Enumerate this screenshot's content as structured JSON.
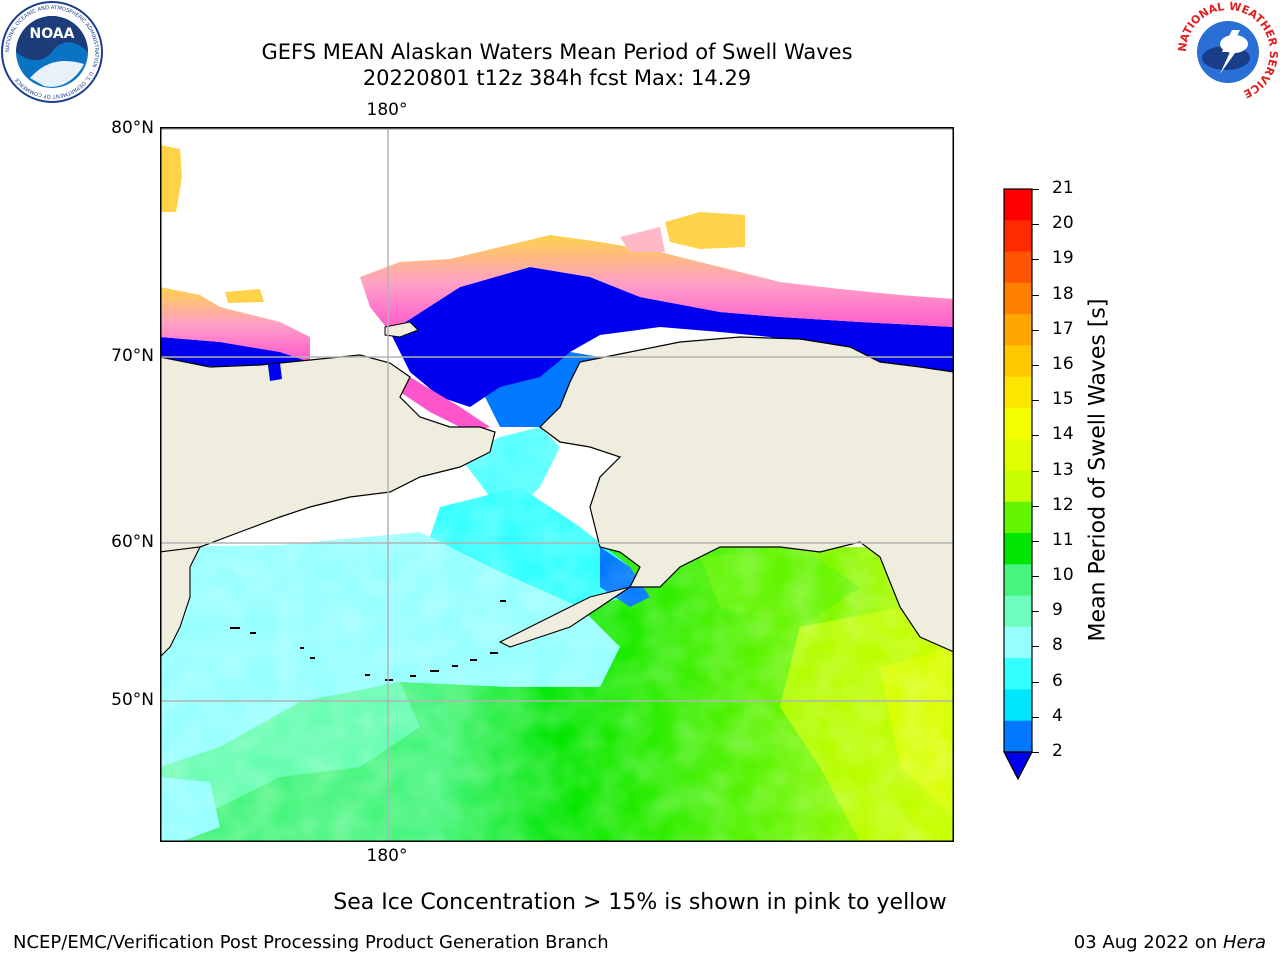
{
  "title": {
    "line1": "GEFS MEAN Alaskan Waters Mean Period of Swell Waves",
    "line2": "20220801 t12z 384h fcst   Max: 14.29"
  },
  "map": {
    "lat_labels": [
      "80°N",
      "70°N",
      "60°N",
      "50°N"
    ],
    "lon_label_top": "180°",
    "lon_label_bottom": "180°",
    "land_color": "#efedde",
    "sea_ice_note": "Sea Ice Concentration > 15% is shown in pink to yellow"
  },
  "colorbar": {
    "label": "Mean Period of Swell Waves [s]",
    "ticks": [
      "21",
      "20",
      "19",
      "18",
      "17",
      "16",
      "15",
      "14",
      "13",
      "12",
      "11",
      "10",
      "9",
      "8",
      "6",
      "4",
      "2"
    ],
    "colors_top_to_bottom": [
      "#ff0000",
      "#ff2a00",
      "#ff5500",
      "#ff7f00",
      "#ffa600",
      "#ffc800",
      "#ffe600",
      "#f5ff00",
      "#e1ff00",
      "#c8ff00",
      "#64f500",
      "#00e600",
      "#46f57d",
      "#6effbe",
      "#96ffff",
      "#32ffff",
      "#00e6ff",
      "#0078ff"
    ],
    "under_color": "#0000f0"
  },
  "logos": {
    "left_text": "NOAA",
    "left_ring": "NATIONAL OCEANIC AND ATMOSPHERIC ADMINISTRATION · U.S. DEPARTMENT OF COMMERCE",
    "right_ring": "NATIONAL WEATHER SERVICE"
  },
  "footer": {
    "left": "NCEP/EMC/Verification Post Processing Product Generation Branch",
    "right_date": "03 Aug 2022 on ",
    "right_host": "Hera"
  }
}
